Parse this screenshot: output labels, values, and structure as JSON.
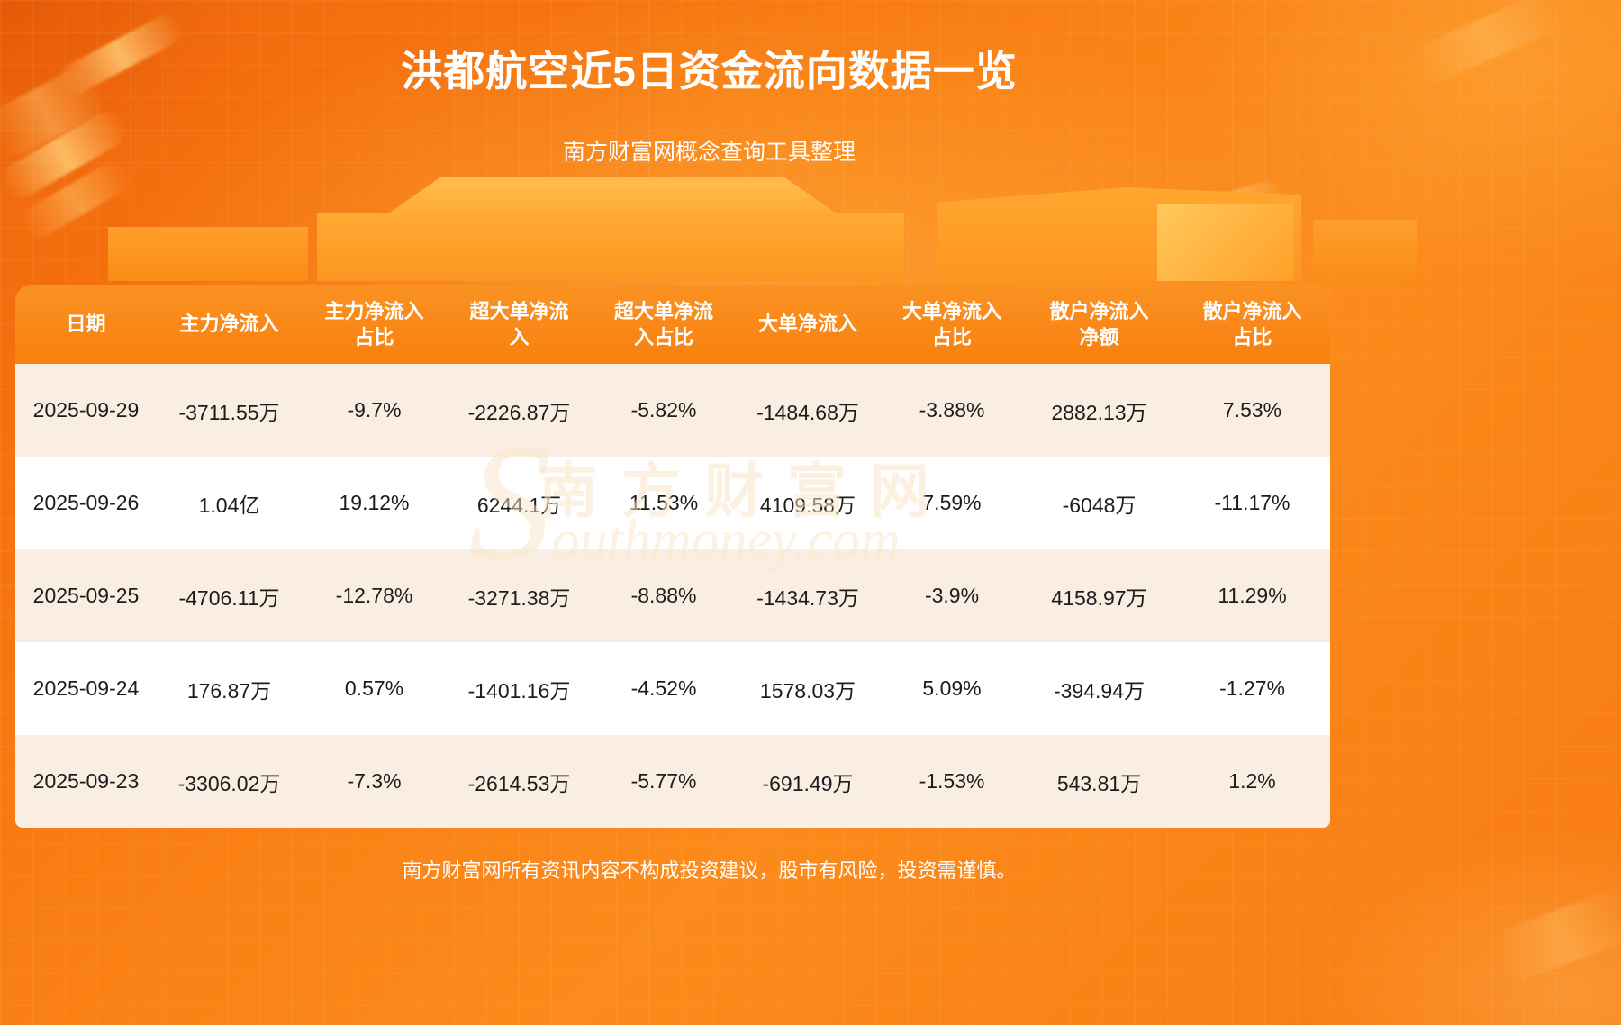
{
  "page": {
    "title": "洪都航空近5日资金流向数据一览",
    "subtitle": "南方财富网概念查询工具整理",
    "disclaimer": "南方财富网所有资讯内容不构成投资建议，股市有风险，投资需谨慎。",
    "watermark": {
      "cn": "南方财富网",
      "en": "Southmoney.com"
    }
  },
  "colors": {
    "background_orange": "#fb8519",
    "header_orange": "#f8800f",
    "row_light": "#faeee3",
    "row_white": "#ffffff",
    "title_text": "#ffffff",
    "cell_text": "#1c1c1c"
  },
  "chart_data": {
    "type": "table",
    "title": "洪都航空近5日资金流向数据一览",
    "columns": [
      "日期",
      "主力净流入",
      "主力净流入占比",
      "超大单净流入",
      "超大单净流入占比",
      "大单净流入",
      "大单净流入占比",
      "散户净流入净额",
      "散户净流入占比"
    ],
    "rows": [
      [
        "2025-09-29",
        "-3711.55万",
        "-9.7%",
        "-2226.87万",
        "-5.82%",
        "-1484.68万",
        "-3.88%",
        "2882.13万",
        "7.53%"
      ],
      [
        "2025-09-26",
        "1.04亿",
        "19.12%",
        "6244.1万",
        "11.53%",
        "4109.58万",
        "7.59%",
        "-6048万",
        "-11.17%"
      ],
      [
        "2025-09-25",
        "-4706.11万",
        "-12.78%",
        "-3271.38万",
        "-8.88%",
        "-1434.73万",
        "-3.9%",
        "4158.97万",
        "11.29%"
      ],
      [
        "2025-09-24",
        "176.87万",
        "0.57%",
        "-1401.16万",
        "-4.52%",
        "1578.03万",
        "5.09%",
        "-394.94万",
        "-1.27%"
      ],
      [
        "2025-09-23",
        "-3306.02万",
        "-7.3%",
        "-2614.53万",
        "-5.77%",
        "-691.49万",
        "-1.53%",
        "543.81万",
        "1.2%"
      ]
    ]
  }
}
